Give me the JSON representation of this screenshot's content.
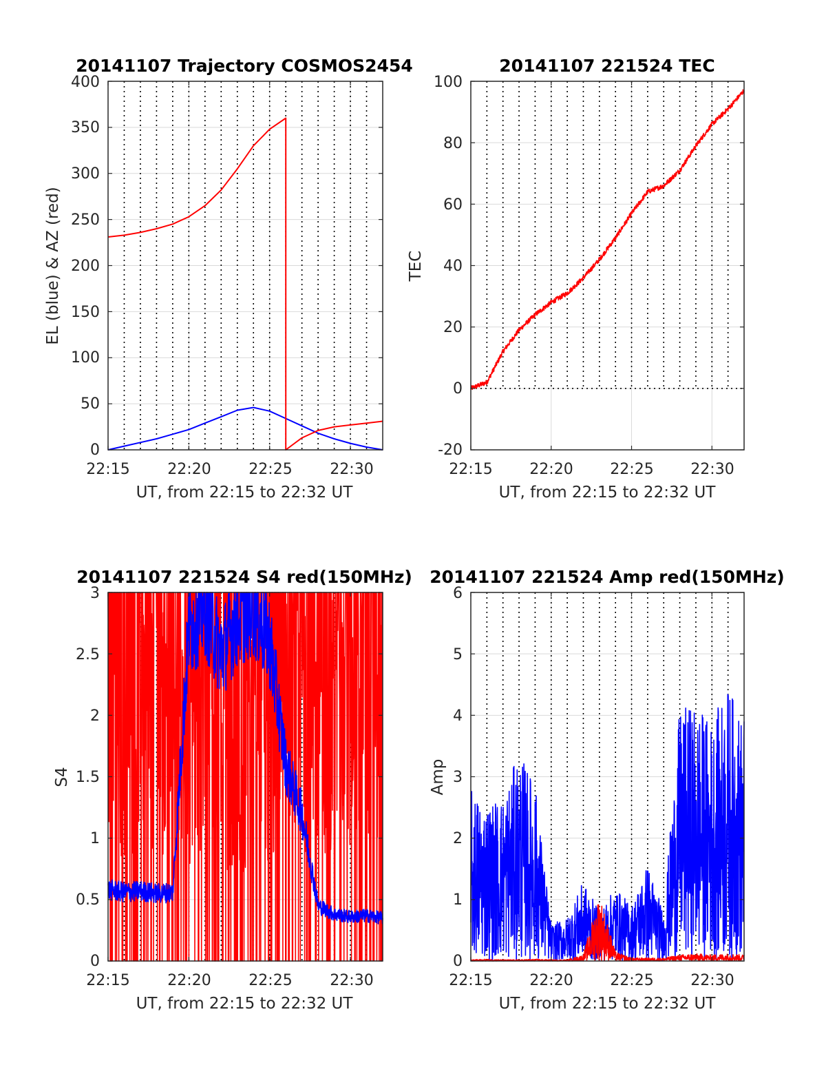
{
  "figure": {
    "background": "#ffffff",
    "colors": {
      "el_series": "#0000ff",
      "az_series": "#ff0000",
      "grid": "#d9d9d9",
      "dotted_marker": "#000000"
    }
  },
  "chart_data": [
    {
      "id": "trajectory",
      "type": "line",
      "title": "20141107 Trajectory COSMOS2454",
      "xlabel": "UT, from 22:15 to 22:32 UT",
      "ylabel": "EL (blue) & AZ (red)",
      "xlim": [
        "22:15",
        "22:32"
      ],
      "ylim": [
        0,
        400
      ],
      "xticks": [
        "22:15",
        "22:20",
        "22:25",
        "22:30"
      ],
      "yticks": [
        0,
        50,
        100,
        150,
        200,
        250,
        300,
        350,
        400
      ],
      "grid": true,
      "series": [
        {
          "name": "EL (blue)",
          "color": "#0000ff",
          "x": [
            "22:15",
            "22:16",
            "22:17",
            "22:18",
            "22:19",
            "22:20",
            "22:21",
            "22:22",
            "22:23",
            "22:24",
            "22:25",
            "22:26",
            "22:27",
            "22:28",
            "22:29",
            "22:30",
            "22:31",
            "22:32"
          ],
          "y": [
            0,
            4,
            8,
            12,
            17,
            22,
            29,
            36,
            43,
            46,
            42,
            34,
            26,
            18,
            12,
            7,
            3,
            0
          ]
        },
        {
          "name": "AZ (red)",
          "color": "#ff0000",
          "x": [
            "22:15",
            "22:16",
            "22:17",
            "22:18",
            "22:19",
            "22:20",
            "22:21",
            "22:22",
            "22:23",
            "22:24",
            "22:25",
            "22:26",
            "22:26",
            "22:27",
            "22:28",
            "22:29",
            "22:30",
            "22:31",
            "22:32"
          ],
          "y": [
            231,
            233,
            236,
            240,
            245,
            253,
            265,
            282,
            305,
            330,
            348,
            360,
            0,
            13,
            21,
            25,
            27,
            29,
            31
          ]
        }
      ]
    },
    {
      "id": "tec",
      "type": "line",
      "title": "20141107 221524 TEC",
      "xlabel": "UT, from 22:15 to 22:32 UT",
      "ylabel": "TEC",
      "xlim": [
        "22:15",
        "22:32"
      ],
      "ylim": [
        -20,
        100
      ],
      "xticks": [
        "22:15",
        "22:20",
        "22:25",
        "22:30"
      ],
      "yticks": [
        -20,
        0,
        20,
        40,
        60,
        80,
        100
      ],
      "grid": true,
      "series": [
        {
          "name": "TEC",
          "color": "#ff0000",
          "x": [
            "22:15",
            "22:16",
            "22:17",
            "22:18",
            "22:19",
            "22:20",
            "22:21",
            "22:22",
            "22:23",
            "22:24",
            "22:25",
            "22:26",
            "22:27",
            "22:28",
            "22:29",
            "22:30",
            "22:31",
            "22:32"
          ],
          "y": [
            0,
            2,
            12,
            19,
            24,
            28,
            31,
            36,
            42,
            49,
            57,
            64,
            66,
            71,
            79,
            86,
            91,
            97
          ]
        }
      ]
    },
    {
      "id": "s4",
      "type": "line",
      "title": "20141107 221524 S4 red(150MHz)",
      "xlabel": "UT, from 22:15 to 22:32 UT",
      "ylabel": "S4",
      "xlim": [
        "22:15",
        "22:32"
      ],
      "ylim": [
        0,
        3
      ],
      "xticks": [
        "22:15",
        "22:20",
        "22:25",
        "22:30"
      ],
      "yticks": [
        0,
        0.5,
        1,
        1.5,
        2,
        2.5,
        3
      ],
      "grid": true,
      "series": [
        {
          "name": "S4 red",
          "color": "#ff0000",
          "x": [
            "22:15",
            "22:16",
            "22:17",
            "22:18",
            "22:19",
            "22:20",
            "22:21",
            "22:22",
            "22:23",
            "22:24",
            "22:25",
            "22:26",
            "22:27",
            "22:28",
            "22:29",
            "22:30",
            "22:31",
            "22:32"
          ],
          "y": [
            3,
            2.6,
            2.8,
            3,
            2.7,
            2.5,
            3,
            3,
            1.6,
            2.8,
            2.2,
            3,
            2.9,
            2.6,
            3,
            2.7,
            3,
            3
          ]
        },
        {
          "name": "S4 blue",
          "color": "#0000ff",
          "x": [
            "22:15",
            "22:16",
            "22:17",
            "22:18",
            "22:19",
            "22:20",
            "22:21",
            "22:22",
            "22:23",
            "22:24",
            "22:25",
            "22:26",
            "22:27",
            "22:28",
            "22:29",
            "22:30",
            "22:31",
            "22:32"
          ],
          "y": [
            0.58,
            0.56,
            0.57,
            0.55,
            0.56,
            2.7,
            2.9,
            2.5,
            2.8,
            2.9,
            2.6,
            1.6,
            1.2,
            0.45,
            0.38,
            0.36,
            0.37,
            0.35
          ]
        }
      ]
    },
    {
      "id": "amp",
      "type": "line",
      "title": "20141107 221524 Amp red(150MHz)",
      "xlabel": "UT, from 22:15 to 22:32 UT",
      "ylabel": "Amp",
      "xlim": [
        "22:15",
        "22:32"
      ],
      "ylim": [
        0,
        6
      ],
      "xticks": [
        "22:15",
        "22:20",
        "22:25",
        "22:30"
      ],
      "yticks": [
        0,
        1,
        2,
        3,
        4,
        5,
        6
      ],
      "grid": true,
      "series": [
        {
          "name": "Amp blue",
          "color": "#0000ff",
          "x": [
            "22:15",
            "22:16",
            "22:17",
            "22:18",
            "22:19",
            "22:20",
            "22:21",
            "22:22",
            "22:23",
            "22:24",
            "22:25",
            "22:26",
            "22:27",
            "22:28",
            "22:29",
            "22:30",
            "22:31",
            "22:32"
          ],
          "y": [
            2.8,
            2.6,
            2.7,
            3.4,
            2.9,
            0.6,
            0.7,
            1.3,
            0.8,
            1.2,
            0.9,
            1.6,
            0.8,
            4.1,
            4.2,
            3.9,
            4.5,
            3.9
          ]
        },
        {
          "name": "Amp red",
          "color": "#ff0000",
          "x": [
            "22:15",
            "22:16",
            "22:17",
            "22:18",
            "22:19",
            "22:20",
            "22:21",
            "22:22",
            "22:23",
            "22:24",
            "22:25",
            "22:26",
            "22:27",
            "22:28",
            "22:29",
            "22:30",
            "22:31",
            "22:32"
          ],
          "y": [
            0.02,
            0.03,
            0.02,
            0.02,
            0.03,
            0.02,
            0.02,
            0.1,
            1.1,
            0.15,
            0.05,
            0.05,
            0.05,
            0.1,
            0.12,
            0.1,
            0.12,
            0.1
          ]
        }
      ]
    }
  ]
}
